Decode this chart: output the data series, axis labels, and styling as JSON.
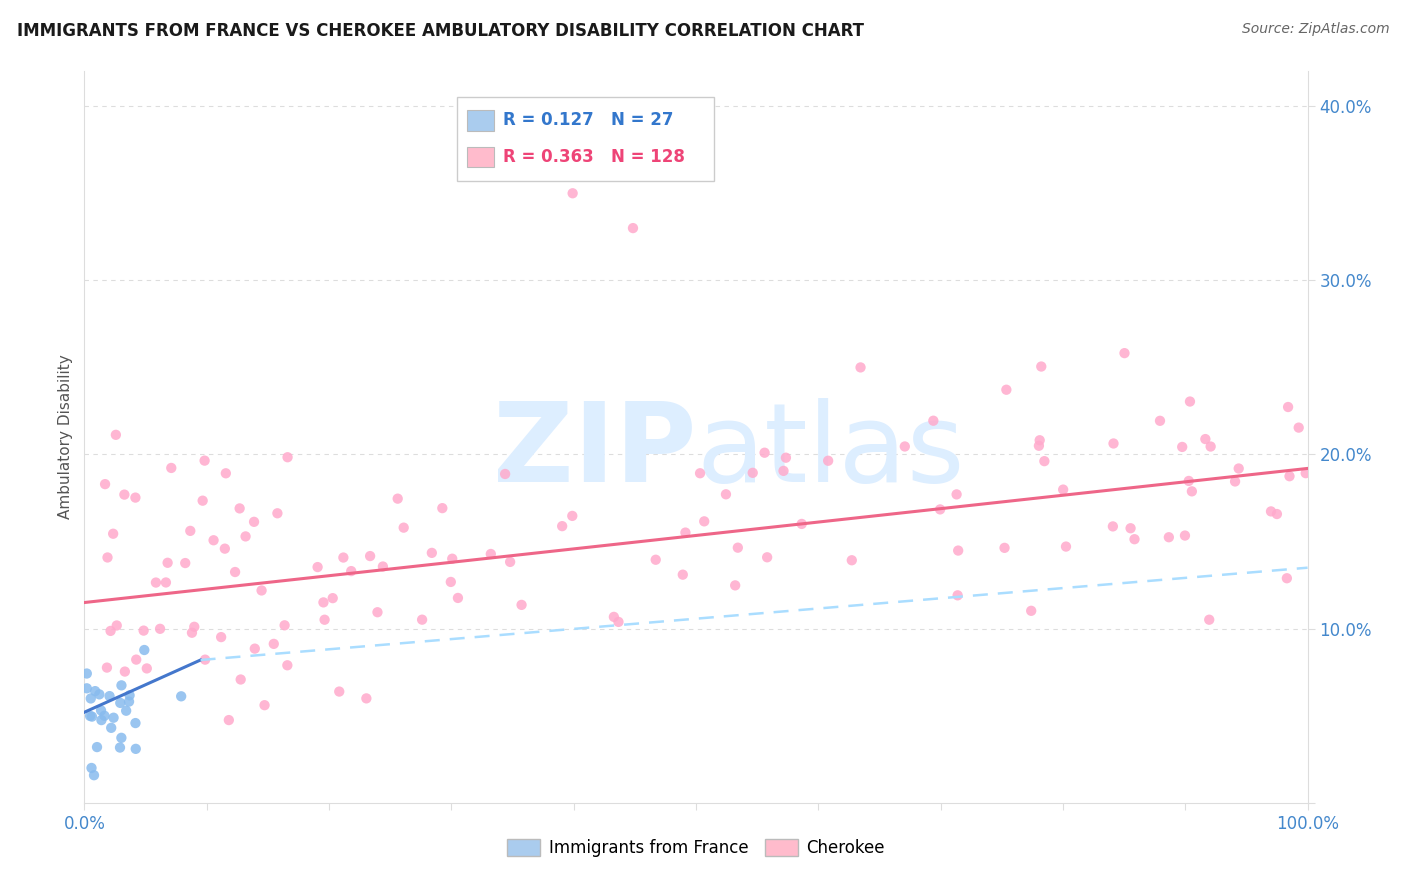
{
  "title": "IMMIGRANTS FROM FRANCE VS CHEROKEE AMBULATORY DISABILITY CORRELATION CHART",
  "source": "Source: ZipAtlas.com",
  "ylabel": "Ambulatory Disability",
  "xlabel": "",
  "legend_france": {
    "R": 0.127,
    "N": 27
  },
  "legend_cherokee": {
    "R": 0.363,
    "N": 128
  },
  "title_color": "#1a1a1a",
  "source_color": "#666666",
  "axis_label_color": "#555555",
  "tick_color_blue": "#4488cc",
  "grid_color": "#dddddd",
  "background_color": "#ffffff",
  "xlim": [
    0.0,
    1.0
  ],
  "ylim": [
    0.0,
    0.42
  ],
  "xticks": [
    0.0,
    0.1,
    0.2,
    0.3,
    0.4,
    0.5,
    0.6,
    0.7,
    0.8,
    0.9,
    1.0
  ],
  "yticks": [
    0.0,
    0.1,
    0.2,
    0.3,
    0.4
  ],
  "france_color": "#88bbee",
  "cherokee_color": "#ffaacc",
  "france_trend_color": "#4477cc",
  "cherokee_trend_color": "#ee6688",
  "dashed_trend_color": "#aaddff",
  "watermark_color": "#ddeeff",
  "legend_france_box": "#aaccee",
  "legend_cherokee_box": "#ffbbcc",
  "legend_text_color_blue": "#3377cc",
  "legend_text_color_pink": "#ee4477"
}
